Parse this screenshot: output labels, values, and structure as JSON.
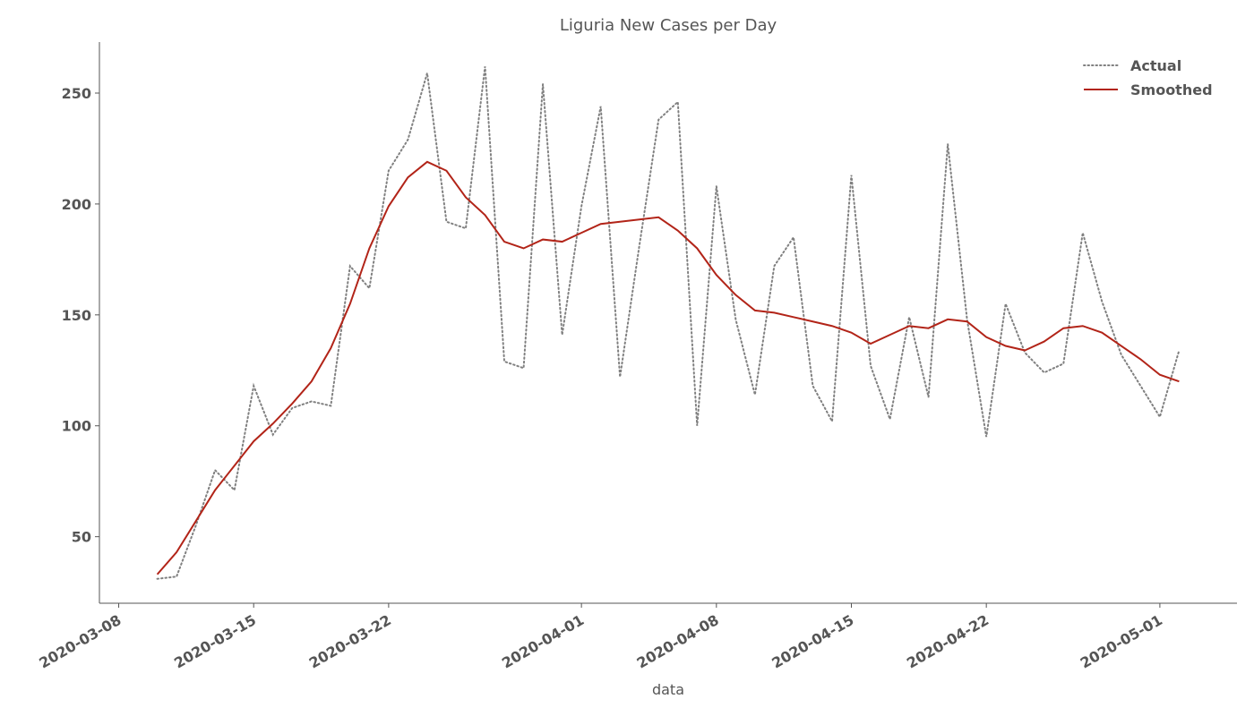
{
  "chart_data": {
    "type": "line",
    "title": "Liguria New Cases per Day",
    "xlabel": "data",
    "ylabel": "",
    "x_start": "2020-03-10",
    "xlim": [
      "2020-03-07",
      "2020-05-05"
    ],
    "ylim": [
      20,
      273
    ],
    "x_ticks": [
      "2020-03-08",
      "2020-03-15",
      "2020-03-22",
      "2020-04-01",
      "2020-04-08",
      "2020-04-15",
      "2020-04-22",
      "2020-05-01"
    ],
    "y_ticks": [
      50,
      100,
      150,
      200,
      250
    ],
    "grid": false,
    "legend": "top-right",
    "series": [
      {
        "name": "Actual",
        "style": "dotted",
        "color": "#808080",
        "values": [
          31,
          32,
          55,
          80,
          71,
          118,
          96,
          108,
          111,
          109,
          172,
          162,
          215,
          229,
          259,
          192,
          189,
          262,
          129,
          126,
          254,
          141,
          199,
          244,
          122,
          181,
          238,
          246,
          100,
          208,
          148,
          114,
          172,
          185,
          118,
          102,
          213,
          127,
          103,
          149,
          113,
          227,
          148,
          95,
          155,
          133,
          124,
          128,
          187,
          156,
          132,
          118,
          104,
          134
        ]
      },
      {
        "name": "Smoothed",
        "style": "solid",
        "color": "#b22418",
        "values": [
          33,
          43,
          57,
          71,
          82,
          93,
          101,
          110,
          120,
          135,
          155,
          180,
          199,
          212,
          219,
          215,
          203,
          195,
          183,
          180,
          184,
          183,
          187,
          191,
          192,
          193,
          194,
          188,
          180,
          168,
          159,
          152,
          151,
          149,
          147,
          145,
          142,
          137,
          141,
          145,
          144,
          148,
          147,
          140,
          136,
          134,
          138,
          144,
          145,
          142,
          136,
          130,
          123,
          120
        ]
      }
    ]
  }
}
